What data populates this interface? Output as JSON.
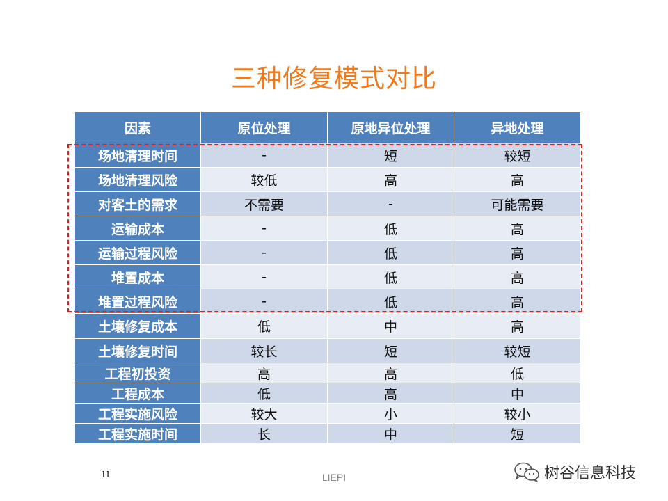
{
  "slide": {
    "title": "三种修复模式对比",
    "page_number": "11",
    "footer": "LIEPI",
    "watermark_text": "树谷信息科技"
  },
  "table": {
    "headers": [
      "因素",
      "原位处理",
      "原地异位处理",
      "异地处理"
    ],
    "rows": [
      [
        "场地清理时间",
        "-",
        "短",
        "较短"
      ],
      [
        "场地清理风险",
        "较低",
        "高",
        "高"
      ],
      [
        "对客土的需求",
        "不需要",
        "-",
        "可能需要"
      ],
      [
        "运输成本",
        "-",
        "低",
        "高"
      ],
      [
        "运输过程风险",
        "-",
        "低",
        "高"
      ],
      [
        "堆置成本",
        "-",
        "低",
        "高"
      ],
      [
        "堆置过程风险",
        "-",
        "低",
        "高"
      ],
      [
        "土壤修复成本",
        "低",
        "中",
        "高"
      ],
      [
        "土壤修复时间",
        "较长",
        "短",
        "较短"
      ],
      [
        "工程初投资",
        "高",
        "高",
        "低"
      ],
      [
        "工程成本",
        "低",
        "高",
        "中"
      ],
      [
        "工程实施风险",
        "较大",
        "小",
        "较小"
      ],
      [
        "工程实施时间",
        "长",
        "中",
        "短"
      ]
    ]
  },
  "colors": {
    "title": "#f07a1e",
    "header_bg": "#4f81bd",
    "row_odd": "#cfd8e8",
    "row_even": "#e8edf5",
    "highlight_border": "#e02020"
  },
  "icons": {
    "watermark": "wechat-icon"
  }
}
